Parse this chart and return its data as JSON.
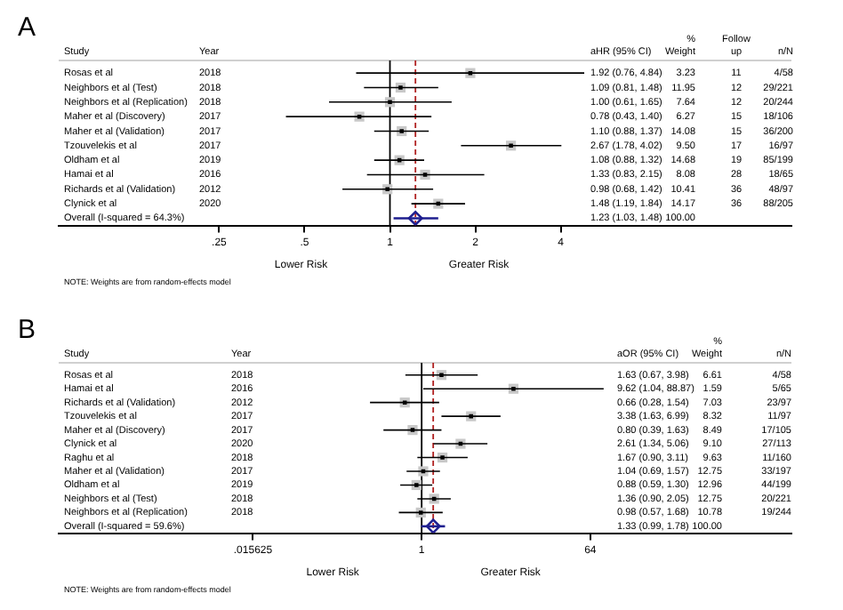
{
  "chart_data": [
    {
      "type": "scatter",
      "orientation": "horizontal",
      "title": "A",
      "log": "x",
      "tick_labels": "x",
      "categories": [
        "Rosas et al",
        "Neighbors et al (Test)",
        "Neighbors et al (Replication)",
        "Maher et al (Discovery)",
        "Maher et al (Validation)",
        "Tzouvelekis et al",
        "Oldham et al",
        "Hamai et al",
        "Richards et al (Validation)",
        "Clynick et al",
        "Overall (I-squared = 64.3%)"
      ],
      "series": [
        {
          "color": "#000000",
          "marker": "square",
          "values": [
            1.92,
            1.09,
            1.0,
            0.78,
            1.1,
            2.67,
            1.08,
            1.33,
            0.98,
            1.48,
            null
          ],
          "errors": [
            [
              0.76,
              4.84
            ],
            [
              0.81,
              1.48
            ],
            [
              0.61,
              1.65
            ],
            [
              0.43,
              1.4
            ],
            [
              0.88,
              1.37
            ],
            [
              1.78,
              4.02
            ],
            [
              0.88,
              1.32
            ],
            [
              0.83,
              2.15
            ],
            [
              0.68,
              1.42
            ],
            [
              1.19,
              1.84
            ],
            null
          ]
        },
        {
          "color": "#1f1f8f",
          "marker": "diamond",
          "values": [
            null,
            null,
            null,
            null,
            null,
            null,
            null,
            null,
            null,
            null,
            1.23
          ],
          "errors": [
            null,
            null,
            null,
            null,
            null,
            null,
            null,
            null,
            null,
            null,
            [
              1.03,
              1.48
            ]
          ]
        }
      ],
      "xlim": [
        0.068,
        26
      ],
      "xticks": [
        {
          "value": 0.25,
          "label": ".25"
        },
        {
          "value": 0.5,
          "label": ".5"
        },
        1,
        2,
        4
      ],
      "ref_lines": [
        {
          "axis": "x",
          "value": 1,
          "color": "#000000",
          "line_style": "solid"
        },
        {
          "axis": "x",
          "value": 1.23,
          "color": "#b02020",
          "line_style": "dashed"
        }
      ],
      "annotations": [
        "Study",
        "Year",
        "aHR (95% CI)",
        "%\nWeight",
        "Follow\nup",
        "n/N",
        "2018",
        "1.92 (0.76, 4.84)",
        "3.23",
        "11",
        "4/58",
        "2018",
        "1.09 (0.81, 1.48)",
        "11.95",
        "12",
        "29/221",
        "2018",
        "1.00 (0.61, 1.65)",
        "7.64",
        "12",
        "20/244",
        "2017",
        "0.78 (0.43, 1.40)",
        "6.27",
        "15",
        "18/106",
        "2017",
        "1.10 (0.88, 1.37)",
        "14.08",
        "15",
        "36/200",
        "2017",
        "2.67 (1.78, 4.02)",
        "9.50",
        "17",
        "16/97",
        "2019",
        "1.08 (0.88, 1.32)",
        "14.68",
        "19",
        "85/199",
        "2016",
        "1.33 (0.83, 2.15)",
        "8.08",
        "28",
        "18/65",
        "2012",
        "0.98 (0.68, 1.42)",
        "10.41",
        "36",
        "48/97",
        "2020",
        "1.48 (1.19, 1.84)",
        "14.17",
        "36",
        "88/205",
        "1.23 (1.03, 1.48)",
        "100.00",
        "Lower Risk",
        "Greater Risk",
        "NOTE: Weights are from random-effects model"
      ]
    },
    {
      "type": "scatter",
      "orientation": "horizontal",
      "title": "B",
      "log": "x",
      "tick_labels": "x",
      "categories": [
        "Rosas et al",
        "Hamai et al",
        "Richards et al (Validation)",
        "Tzouvelekis et al",
        "Maher et al (Discovery)",
        "Clynick et al",
        "Raghu et al",
        "Maher et al (Validation)",
        "Oldham et al",
        "Neighbors et al (Test)",
        "Neighbors et al (Replication)",
        "Overall (I-squared = 59.6%)"
      ],
      "series": [
        {
          "color": "#000000",
          "marker": "square",
          "values": [
            1.63,
            9.62,
            0.66,
            3.38,
            0.8,
            2.61,
            1.67,
            1.04,
            0.88,
            1.36,
            0.98,
            null
          ],
          "errors": [
            [
              0.67,
              3.98
            ],
            [
              1.04,
              88.87
            ],
            [
              0.28,
              1.54
            ],
            [
              1.63,
              6.99
            ],
            [
              0.39,
              1.63
            ],
            [
              1.34,
              5.06
            ],
            [
              0.9,
              3.11
            ],
            [
              0.69,
              1.57
            ],
            [
              0.59,
              1.3
            ],
            [
              0.9,
              2.05
            ],
            [
              0.57,
              1.68
            ],
            null
          ]
        },
        {
          "color": "#1f1f8f",
          "marker": "diamond",
          "values": [
            null,
            null,
            null,
            null,
            null,
            null,
            null,
            null,
            null,
            null,
            null,
            1.33
          ],
          "errors": [
            null,
            null,
            null,
            null,
            null,
            null,
            null,
            null,
            null,
            null,
            null,
            [
              0.99,
              1.78
            ]
          ]
        }
      ],
      "xlim": [
        0.00013,
        9100
      ],
      "xticks": [
        {
          "value": 0.015625,
          "label": ".015625"
        },
        1,
        64
      ],
      "ref_lines": [
        {
          "axis": "x",
          "value": 1,
          "color": "#000000",
          "line_style": "solid"
        },
        {
          "axis": "x",
          "value": 1.33,
          "color": "#b02020",
          "line_style": "dashed"
        }
      ],
      "annotations": [
        "Study",
        "Year",
        "aOR (95% CI)",
        "%\nWeight",
        "n/N",
        "2018",
        "1.63 (0.67, 3.98)",
        "6.61",
        "4/58",
        "2016",
        "9.62 (1.04, 88.87)",
        "1.59",
        "5/65",
        "2012",
        "0.66 (0.28, 1.54)",
        "7.03",
        "23/97",
        "2017",
        "3.38 (1.63, 6.99)",
        "8.32",
        "11/97",
        "2017",
        "0.80 (0.39, 1.63)",
        "8.49",
        "17/105",
        "2020",
        "2.61 (1.34, 5.06)",
        "9.10",
        "27/113",
        "2018",
        "1.67 (0.90, 3.11)",
        "9.63",
        "11/160",
        "2017",
        "1.04 (0.69, 1.57)",
        "12.75",
        "33/197",
        "2019",
        "0.88 (0.59, 1.30)",
        "12.96",
        "44/199",
        "2018",
        "1.36 (0.90, 2.05)",
        "12.75",
        "20/221",
        "2018",
        "0.98 (0.57, 1.68)",
        "10.78",
        "19/244",
        "1.33 (0.99, 1.78)",
        "100.00",
        "Lower Risk",
        "Greater Risk",
        "NOTE: Weights are from random-effects model"
      ]
    }
  ]
}
